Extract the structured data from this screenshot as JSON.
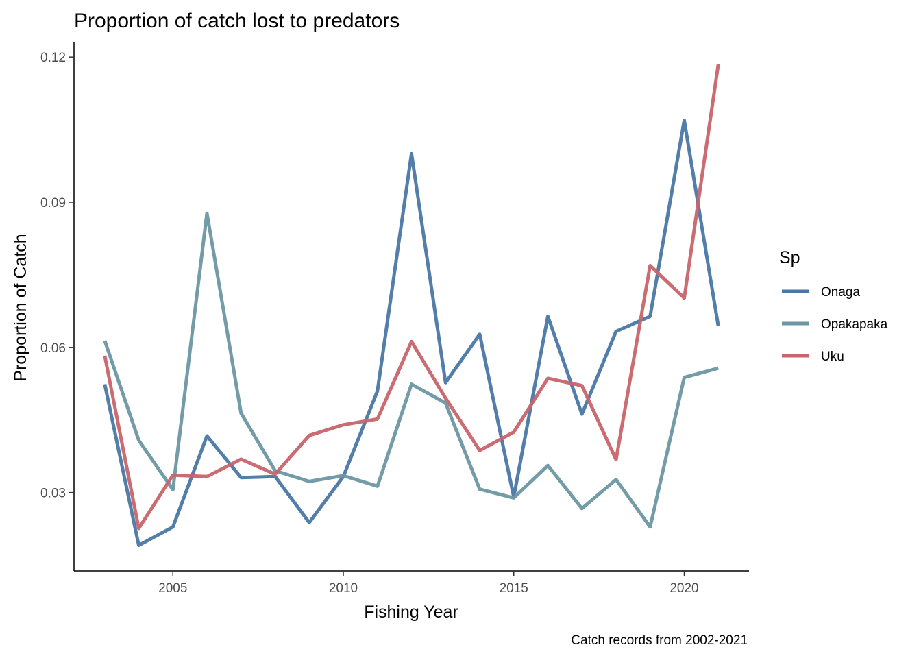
{
  "chart_data": {
    "type": "line",
    "title": "Proportion of catch lost to predators",
    "xlabel": "Fishing Year",
    "ylabel": "Proportion of Catch",
    "caption": "Catch records from 2002-2021",
    "legend_title": "Sp",
    "legend_position": "right",
    "grid": false,
    "xlim": [
      2002.1,
      2021.9
    ],
    "ylim": [
      0.0138,
      0.123
    ],
    "x_ticks": [
      2005,
      2010,
      2015,
      2020
    ],
    "x_tick_labels": [
      "2005",
      "2010",
      "2015",
      "2020"
    ],
    "y_ticks": [
      0.03,
      0.06,
      0.09,
      0.12
    ],
    "y_tick_labels": [
      "0.03",
      "0.06",
      "0.09",
      "0.12"
    ],
    "x": [
      2003,
      2004,
      2005,
      2006,
      2007,
      2008,
      2009,
      2010,
      2011,
      2012,
      2013,
      2014,
      2015,
      2016,
      2017,
      2018,
      2019,
      2020,
      2021
    ],
    "series": [
      {
        "name": "Onaga",
        "color": "#4a77a4",
        "values": [
          0.0524,
          0.0191,
          0.0229,
          0.0417,
          0.0331,
          0.0333,
          0.0238,
          0.0333,
          0.051,
          0.1,
          0.0527,
          0.0627,
          0.0291,
          0.0664,
          0.0462,
          0.0633,
          0.0664,
          0.1069,
          0.0644
        ]
      },
      {
        "name": "Opakapaka",
        "color": "#6b97a3",
        "values": [
          0.0614,
          0.0408,
          0.0306,
          0.0877,
          0.0464,
          0.0345,
          0.0323,
          0.0335,
          0.0313,
          0.0524,
          0.0485,
          0.0307,
          0.0289,
          0.0356,
          0.0267,
          0.0327,
          0.0229,
          0.0538,
          0.0557
        ]
      },
      {
        "name": "Uku",
        "color": "#c8646c",
        "values": [
          0.0583,
          0.0226,
          0.0336,
          0.0333,
          0.0369,
          0.0338,
          0.0418,
          0.044,
          0.0452,
          0.0612,
          0.0495,
          0.0387,
          0.0425,
          0.0536,
          0.0521,
          0.0368,
          0.0769,
          0.0702,
          0.1185
        ]
      }
    ]
  }
}
